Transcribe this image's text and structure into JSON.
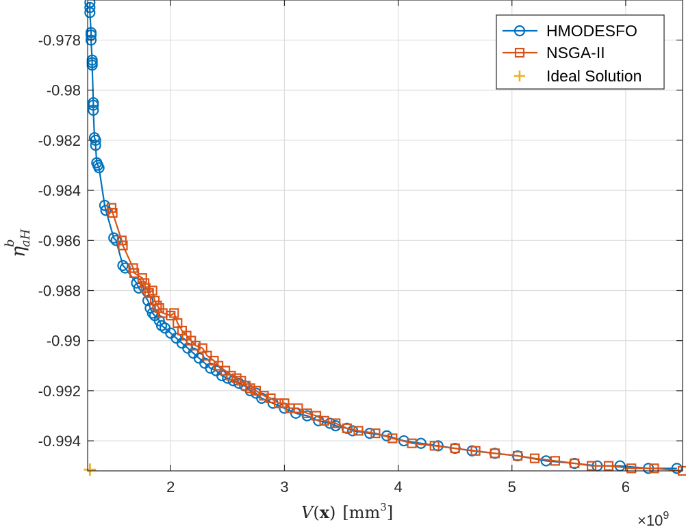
{
  "chart_data": {
    "type": "line",
    "title": "",
    "xlabel": "V(x) [mm^3]",
    "xlabel_parts": {
      "func": "V",
      "open": "(",
      "arg": "x",
      "close": ")",
      "unit_open": "[mm",
      "unit_exp": "3",
      "unit_close": "]"
    },
    "ylabel": "η_aH^b",
    "ylabel_parts": {
      "symbol": "η",
      "sub": "aH",
      "sup": "b"
    },
    "x_scale_label": {
      "base": "×10",
      "exp": "9"
    },
    "xlim": [
      1.27,
      6.5
    ],
    "ylim": [
      -0.9952,
      -0.9764
    ],
    "xticks": [
      2,
      3,
      4,
      5,
      6
    ],
    "xtick_labels": [
      "2",
      "3",
      "4",
      "5",
      "6"
    ],
    "yticks": [
      -0.978,
      -0.98,
      -0.982,
      -0.984,
      -0.986,
      -0.988,
      -0.99,
      -0.992,
      -0.994
    ],
    "ytick_labels": [
      "-0.978",
      "-0.98",
      "-0.982",
      "-0.984",
      "-0.986",
      "-0.988",
      "-0.99",
      "-0.992",
      "-0.994"
    ],
    "grid": true,
    "legend_position": "top-right",
    "series": [
      {
        "name": "HMODESFO",
        "color": "#0072BD",
        "marker": "circle",
        "x": [
          1.29,
          1.29,
          1.29,
          1.3,
          1.3,
          1.3,
          1.31,
          1.31,
          1.31,
          1.32,
          1.32,
          1.32,
          1.33,
          1.34,
          1.34,
          1.35,
          1.36,
          1.37,
          1.42,
          1.43,
          1.5,
          1.52,
          1.58,
          1.6,
          1.7,
          1.72,
          1.8,
          1.82,
          1.84,
          1.86,
          1.9,
          1.92,
          1.95,
          2.0,
          2.05,
          2.1,
          2.15,
          2.2,
          2.25,
          2.3,
          2.35,
          2.4,
          2.45,
          2.5,
          2.55,
          2.6,
          2.65,
          2.7,
          2.75,
          2.8,
          2.9,
          3.0,
          3.1,
          3.2,
          3.3,
          3.4,
          3.45,
          3.55,
          3.6,
          3.75,
          3.9,
          4.05,
          4.2,
          4.35,
          4.5,
          4.65,
          4.85,
          5.05,
          5.3,
          5.55,
          5.75,
          5.95,
          6.2,
          6.45
        ],
        "y": [
          -0.9765,
          -0.9767,
          -0.9769,
          -0.9777,
          -0.9778,
          -0.978,
          -0.9788,
          -0.9789,
          -0.979,
          -0.9805,
          -0.9806,
          -0.9808,
          -0.9819,
          -0.982,
          -0.9822,
          -0.9829,
          -0.983,
          -0.9831,
          -0.9846,
          -0.9848,
          -0.9859,
          -0.986,
          -0.987,
          -0.9871,
          -0.9877,
          -0.9879,
          -0.9884,
          -0.9887,
          -0.9889,
          -0.989,
          -0.9892,
          -0.9894,
          -0.9895,
          -0.9897,
          -0.9899,
          -0.9901,
          -0.9903,
          -0.9905,
          -0.9907,
          -0.9909,
          -0.9911,
          -0.9912,
          -0.9914,
          -0.9915,
          -0.9916,
          -0.9917,
          -0.9918,
          -0.992,
          -0.9921,
          -0.9923,
          -0.9925,
          -0.9927,
          -0.9929,
          -0.993,
          -0.9932,
          -0.9933,
          -0.9934,
          -0.9935,
          -0.9936,
          -0.9937,
          -0.9938,
          -0.994,
          -0.9941,
          -0.9942,
          -0.9943,
          -0.9944,
          -0.9945,
          -0.9946,
          -0.9948,
          -0.9949,
          -0.995,
          -0.995,
          -0.9951,
          -0.9951
        ]
      },
      {
        "name": "NSGA-II",
        "color": "#D95319",
        "marker": "square",
        "x": [
          1.48,
          1.49,
          1.57,
          1.58,
          1.67,
          1.68,
          1.75,
          1.77,
          1.78,
          1.81,
          1.84,
          1.86,
          1.88,
          1.9,
          1.93,
          2.0,
          2.03,
          2.06,
          2.1,
          2.14,
          2.18,
          2.22,
          2.28,
          2.32,
          2.38,
          2.42,
          2.48,
          2.53,
          2.58,
          2.62,
          2.66,
          2.7,
          2.75,
          2.82,
          2.88,
          2.95,
          3.0,
          3.05,
          3.12,
          3.2,
          3.28,
          3.35,
          3.45,
          3.55,
          3.65,
          3.8,
          3.95,
          4.12,
          4.32,
          4.5,
          4.68,
          4.85,
          5.05,
          5.2,
          5.38,
          5.55,
          5.7,
          5.85,
          6.05,
          6.25,
          6.5
        ],
        "y": [
          -0.9847,
          -0.9849,
          -0.986,
          -0.9862,
          -0.9871,
          -0.9873,
          -0.9875,
          -0.9877,
          -0.9879,
          -0.9881,
          -0.988,
          -0.9884,
          -0.9886,
          -0.9887,
          -0.9889,
          -0.989,
          -0.9889,
          -0.9893,
          -0.9896,
          -0.9898,
          -0.99,
          -0.9902,
          -0.9903,
          -0.9906,
          -0.9908,
          -0.991,
          -0.9912,
          -0.9914,
          -0.9915,
          -0.9916,
          -0.9918,
          -0.9919,
          -0.992,
          -0.9922,
          -0.9923,
          -0.9925,
          -0.9925,
          -0.9927,
          -0.9927,
          -0.9929,
          -0.993,
          -0.9932,
          -0.9933,
          -0.9935,
          -0.9936,
          -0.9937,
          -0.9939,
          -0.9941,
          -0.9942,
          -0.9943,
          -0.9944,
          -0.9945,
          -0.9946,
          -0.9947,
          -0.9948,
          -0.9949,
          -0.995,
          -0.995,
          -0.9951,
          -0.9951,
          -0.9952
        ]
      },
      {
        "name": "Ideal Solution",
        "color": "#EDB120",
        "marker": "plus",
        "x": [
          1.29
        ],
        "y": [
          -0.99515
        ]
      }
    ]
  }
}
